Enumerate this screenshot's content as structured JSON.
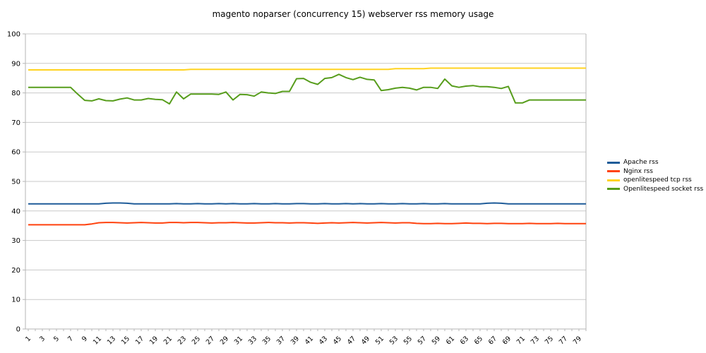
{
  "chart_data": {
    "type": "line",
    "title": "magento noparser (concurrency 15) webserver rss memory usage",
    "xlabel": "",
    "ylabel": "",
    "ylim": [
      0,
      100
    ],
    "y_ticks": [
      0,
      10,
      20,
      30,
      40,
      50,
      60,
      70,
      80,
      90,
      100
    ],
    "y_tick_labels": [
      "0",
      "10",
      "20",
      "30",
      "40",
      "50",
      "60",
      "70",
      "80",
      "90",
      "100"
    ],
    "x_range": [
      1,
      80
    ],
    "x_tick_labels": [
      "1",
      "3",
      "5",
      "7",
      "9",
      "11",
      "13",
      "15",
      "17",
      "19",
      "21",
      "23",
      "25",
      "27",
      "29",
      "31",
      "33",
      "35",
      "37",
      "39",
      "41",
      "43",
      "45",
      "47",
      "49",
      "51",
      "53",
      "55",
      "57",
      "59",
      "61",
      "63",
      "65",
      "67",
      "69",
      "71",
      "73",
      "75",
      "77",
      "79"
    ],
    "grid": true,
    "legend_position": "right",
    "axis_color": "#b6b6b6",
    "grid_color": "#c9c9c9",
    "text_color": "#000000",
    "series": [
      {
        "name": "Apache rss",
        "color": "#1f5c99",
        "values": [
          42.4,
          42.4,
          42.4,
          42.4,
          42.4,
          42.4,
          42.4,
          42.4,
          42.4,
          42.4,
          42.4,
          42.6,
          42.7,
          42.7,
          42.6,
          42.4,
          42.4,
          42.4,
          42.4,
          42.4,
          42.4,
          42.5,
          42.4,
          42.4,
          42.5,
          42.4,
          42.4,
          42.5,
          42.4,
          42.5,
          42.4,
          42.4,
          42.5,
          42.4,
          42.4,
          42.5,
          42.4,
          42.4,
          42.5,
          42.5,
          42.4,
          42.4,
          42.5,
          42.4,
          42.4,
          42.5,
          42.4,
          42.5,
          42.4,
          42.4,
          42.5,
          42.4,
          42.4,
          42.5,
          42.4,
          42.4,
          42.5,
          42.4,
          42.4,
          42.5,
          42.4,
          42.4,
          42.4,
          42.4,
          42.4,
          42.6,
          42.7,
          42.6,
          42.4,
          42.4,
          42.4,
          42.4,
          42.4,
          42.4,
          42.4,
          42.4,
          42.4,
          42.4,
          42.4,
          42.4
        ]
      },
      {
        "name": "Nginx rss",
        "color": "#ff420e",
        "values": [
          35.3,
          35.3,
          35.3,
          35.3,
          35.3,
          35.3,
          35.3,
          35.3,
          35.3,
          35.6,
          36.0,
          36.1,
          36.1,
          36.0,
          35.9,
          36.0,
          36.1,
          36.0,
          35.9,
          35.9,
          36.1,
          36.1,
          36.0,
          36.1,
          36.1,
          36.0,
          35.9,
          36.0,
          36.0,
          36.1,
          36.0,
          35.9,
          35.9,
          36.0,
          36.1,
          36.0,
          36.0,
          35.9,
          36.0,
          36.0,
          35.9,
          35.8,
          35.9,
          36.0,
          35.9,
          36.0,
          36.1,
          36.0,
          35.9,
          36.0,
          36.1,
          36.0,
          35.9,
          36.0,
          36.0,
          35.8,
          35.7,
          35.7,
          35.8,
          35.7,
          35.7,
          35.8,
          35.9,
          35.8,
          35.8,
          35.7,
          35.8,
          35.8,
          35.7,
          35.7,
          35.7,
          35.8,
          35.7,
          35.7,
          35.7,
          35.8,
          35.7,
          35.7,
          35.7,
          35.7
        ]
      },
      {
        "name": "openlitespeed tcp rss",
        "color": "#ffd320",
        "values": [
          87.8,
          87.8,
          87.8,
          87.8,
          87.8,
          87.8,
          87.8,
          87.8,
          87.8,
          87.8,
          87.8,
          87.8,
          87.8,
          87.8,
          87.8,
          87.8,
          87.8,
          87.8,
          87.8,
          87.8,
          87.8,
          87.8,
          87.8,
          88.0,
          88.0,
          88.0,
          88.0,
          88.0,
          88.0,
          88.0,
          88.0,
          88.0,
          88.0,
          88.0,
          88.0,
          88.0,
          88.0,
          88.0,
          88.0,
          88.0,
          88.0,
          88.0,
          88.0,
          88.0,
          88.0,
          88.0,
          88.0,
          88.0,
          88.0,
          88.0,
          88.0,
          88.0,
          88.2,
          88.2,
          88.2,
          88.2,
          88.2,
          88.4,
          88.4,
          88.4,
          88.4,
          88.4,
          88.4,
          88.4,
          88.4,
          88.4,
          88.4,
          88.4,
          88.4,
          88.4,
          88.4,
          88.4,
          88.4,
          88.4,
          88.4,
          88.4,
          88.4,
          88.4,
          88.4,
          88.4
        ]
      },
      {
        "name": "Openlitespeed socket rss",
        "color": "#579d1c",
        "values": [
          81.9,
          81.9,
          81.9,
          81.9,
          81.9,
          81.9,
          81.9,
          79.6,
          77.5,
          77.3,
          78.0,
          77.4,
          77.3,
          77.9,
          78.3,
          77.6,
          77.6,
          78.1,
          77.8,
          77.7,
          76.3,
          80.3,
          78.0,
          79.6,
          79.6,
          79.6,
          79.6,
          79.5,
          80.3,
          77.6,
          79.5,
          79.4,
          78.9,
          80.3,
          80.0,
          79.8,
          80.5,
          80.5,
          84.8,
          84.9,
          83.6,
          82.9,
          84.9,
          85.2,
          86.3,
          85.2,
          84.5,
          85.3,
          84.6,
          84.4,
          80.8,
          81.1,
          81.6,
          81.9,
          81.6,
          81.0,
          81.9,
          81.9,
          81.5,
          84.7,
          82.4,
          81.9,
          82.3,
          82.5,
          82.1,
          82.1,
          81.9,
          81.5,
          82.2,
          76.6,
          76.6,
          77.6,
          77.6,
          77.6,
          77.6,
          77.6,
          77.6,
          77.6,
          77.6,
          77.6
        ]
      }
    ]
  }
}
